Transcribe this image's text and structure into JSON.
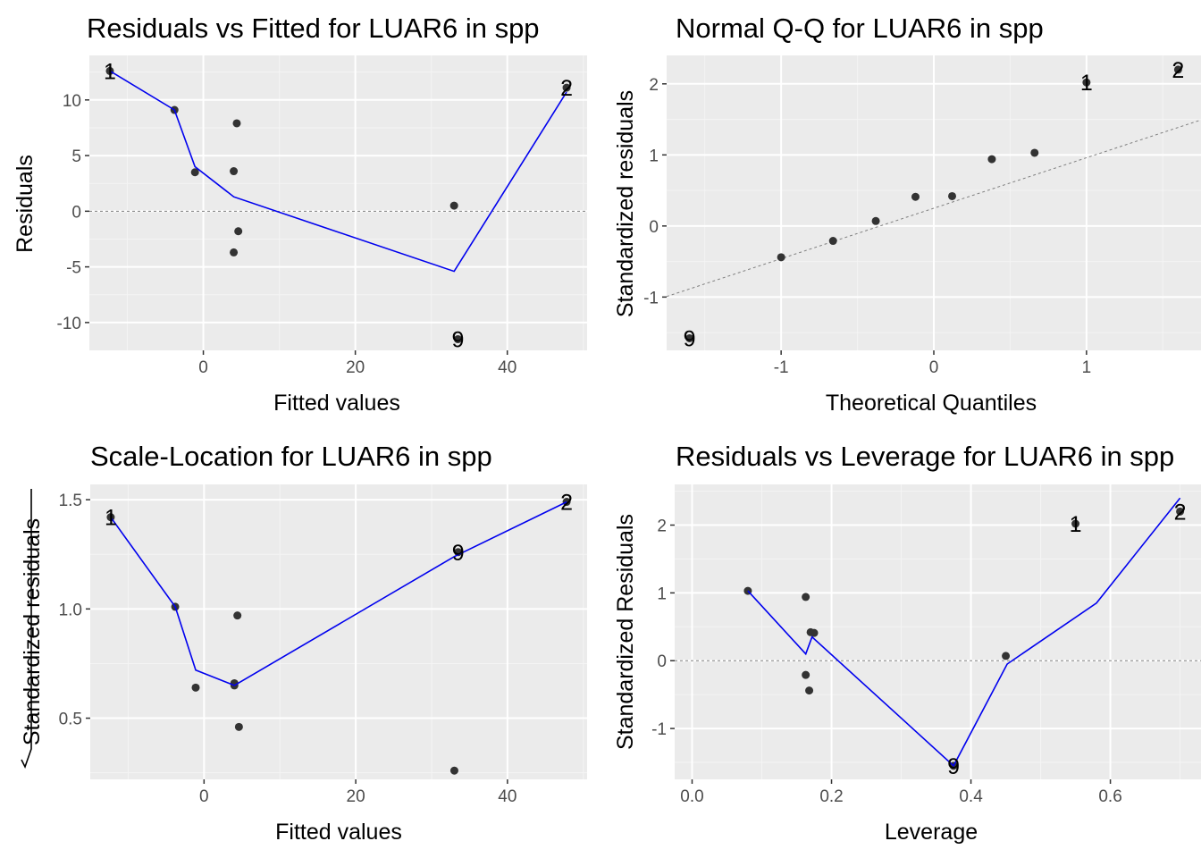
{
  "colors": {
    "panel": "#ebebeb",
    "grid_major": "#ffffff",
    "grid_minor": "#f4f4f4",
    "point": "#333333",
    "smooth": "#0000ee",
    "ref_line": "#7f7f7f",
    "tick_text": "#4d4d4d"
  },
  "chart_data": [
    {
      "id": "rvf",
      "type": "scatter",
      "title": "Residuals vs Fitted for LUAR6 in spp",
      "xlabel": "Fitted values",
      "ylabel": "Residuals",
      "xlim": [
        -15,
        50.5
      ],
      "ylim": [
        -12.5,
        14
      ],
      "xticks": [
        0,
        20,
        40
      ],
      "yticks": [
        -10,
        -5,
        0,
        5,
        10
      ],
      "hline": 0,
      "points": [
        {
          "x": -12.3,
          "y": 12.6
        },
        {
          "x": -3.8,
          "y": 9.1
        },
        {
          "x": -1.1,
          "y": 3.5
        },
        {
          "x": 4.0,
          "y": 3.6
        },
        {
          "x": 4.4,
          "y": 7.9
        },
        {
          "x": 4.6,
          "y": -1.8
        },
        {
          "x": 4.0,
          "y": -3.7
        },
        {
          "x": 33.0,
          "y": 0.5
        },
        {
          "x": 33.5,
          "y": -11.5
        },
        {
          "x": 47.8,
          "y": 11.1
        }
      ],
      "smooth": [
        {
          "x": -12.3,
          "y": 12.6
        },
        {
          "x": -3.8,
          "y": 9.1
        },
        {
          "x": -1.1,
          "y": 4.0
        },
        {
          "x": 4.0,
          "y": 1.3
        },
        {
          "x": 33.0,
          "y": -5.4
        },
        {
          "x": 47.8,
          "y": 10.7
        }
      ],
      "labels": [
        {
          "x": -12.3,
          "y": 12.6,
          "text": "1"
        },
        {
          "x": 47.8,
          "y": 11.1,
          "text": "2"
        },
        {
          "x": 33.5,
          "y": -11.5,
          "text": "9"
        }
      ]
    },
    {
      "id": "qq",
      "type": "scatter",
      "title": "Normal Q-Q for LUAR6 in spp",
      "xlabel": "Theoretical Quantiles",
      "ylabel": "Standardized residuals",
      "xlim": [
        -1.75,
        1.75
      ],
      "ylim": [
        -1.75,
        2.4
      ],
      "xticks": [
        -1,
        0,
        1
      ],
      "yticks": [
        -1,
        0,
        1,
        2
      ],
      "refline": {
        "intercept": 0.25,
        "slope": 0.71
      },
      "points": [
        {
          "x": -1.6,
          "y": -1.58
        },
        {
          "x": -1.0,
          "y": -0.44
        },
        {
          "x": -0.66,
          "y": -0.21
        },
        {
          "x": -0.38,
          "y": 0.07
        },
        {
          "x": -0.12,
          "y": 0.41
        },
        {
          "x": 0.12,
          "y": 0.42
        },
        {
          "x": 0.38,
          "y": 0.94
        },
        {
          "x": 0.66,
          "y": 1.03
        },
        {
          "x": 1.0,
          "y": 2.02
        },
        {
          "x": 1.6,
          "y": 2.2
        }
      ],
      "labels": [
        {
          "x": 1.0,
          "y": 2.02,
          "text": "1"
        },
        {
          "x": 1.6,
          "y": 2.2,
          "text": "2"
        },
        {
          "x": -1.6,
          "y": -1.58,
          "text": "9"
        }
      ]
    },
    {
      "id": "sl",
      "type": "scatter",
      "title": "Scale-Location for LUAR6 in spp",
      "xlabel": "Fitted values",
      "ylabel": "Standardized residuals",
      "xlim": [
        -15,
        50.5
      ],
      "ylim": [
        0.22,
        1.57
      ],
      "xticks": [
        0,
        20,
        40
      ],
      "yticks": [
        0.5,
        1.0,
        1.5
      ],
      "ytick_labels": [
        "0.5",
        "1.0",
        "1.5"
      ],
      "points": [
        {
          "x": -12.3,
          "y": 1.42
        },
        {
          "x": -3.8,
          "y": 1.01
        },
        {
          "x": -1.1,
          "y": 0.64
        },
        {
          "x": 4.0,
          "y": 0.66
        },
        {
          "x": 4.4,
          "y": 0.97
        },
        {
          "x": 4.6,
          "y": 0.46
        },
        {
          "x": 4.0,
          "y": 0.65
        },
        {
          "x": 33.0,
          "y": 0.26
        },
        {
          "x": 33.5,
          "y": 1.26
        },
        {
          "x": 47.8,
          "y": 1.49
        }
      ],
      "smooth": [
        {
          "x": -12.3,
          "y": 1.42
        },
        {
          "x": -3.8,
          "y": 1.01
        },
        {
          "x": -1.1,
          "y": 0.72
        },
        {
          "x": 4.0,
          "y": 0.65
        },
        {
          "x": 33.0,
          "y": 1.24
        },
        {
          "x": 47.8,
          "y": 1.49
        }
      ],
      "labels": [
        {
          "x": -12.3,
          "y": 1.42,
          "text": "1"
        },
        {
          "x": 47.8,
          "y": 1.49,
          "text": "2"
        },
        {
          "x": 33.5,
          "y": 1.26,
          "text": "9"
        }
      ]
    },
    {
      "id": "rvl",
      "type": "scatter",
      "title": "Residuals vs Leverage for LUAR6 in spp",
      "xlabel": "Leverage",
      "ylabel": "Standardized Residuals",
      "xlim": [
        -0.025,
        0.73
      ],
      "ylim": [
        -1.75,
        2.6
      ],
      "xticks": [
        0.0,
        0.2,
        0.4,
        0.6
      ],
      "xtick_labels": [
        "0.0",
        "0.2",
        "0.4",
        "0.6"
      ],
      "yticks": [
        -1,
        0,
        1,
        2
      ],
      "hline": 0,
      "points": [
        {
          "x": 0.08,
          "y": 1.03
        },
        {
          "x": 0.163,
          "y": 0.94
        },
        {
          "x": 0.163,
          "y": -0.21
        },
        {
          "x": 0.168,
          "y": -0.44
        },
        {
          "x": 0.17,
          "y": 0.42
        },
        {
          "x": 0.175,
          "y": 0.41
        },
        {
          "x": 0.45,
          "y": 0.07
        },
        {
          "x": 0.375,
          "y": -1.55
        },
        {
          "x": 0.55,
          "y": 2.02
        },
        {
          "x": 0.7,
          "y": 2.2
        }
      ],
      "smooth": [
        {
          "x": 0.08,
          "y": 1.03
        },
        {
          "x": 0.163,
          "y": 0.1
        },
        {
          "x": 0.172,
          "y": 0.35
        },
        {
          "x": 0.375,
          "y": -1.55
        },
        {
          "x": 0.452,
          "y": -0.05
        },
        {
          "x": 0.58,
          "y": 0.85
        },
        {
          "x": 0.7,
          "y": 2.4
        }
      ],
      "labels": [
        {
          "x": 0.55,
          "y": 2.02,
          "text": "1"
        },
        {
          "x": 0.7,
          "y": 2.2,
          "text": "2"
        },
        {
          "x": 0.375,
          "y": -1.55,
          "text": "9"
        }
      ]
    }
  ]
}
